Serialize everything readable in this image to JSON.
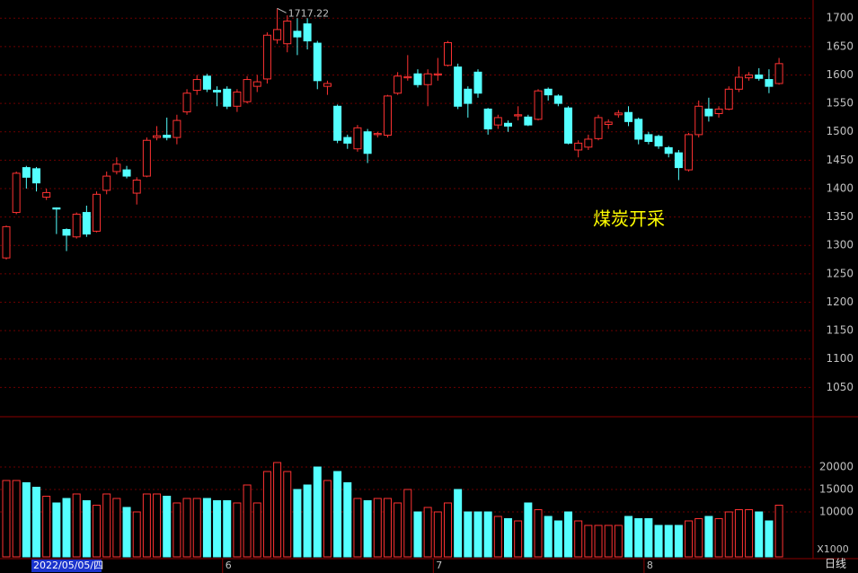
{
  "chart_data": {
    "type": "candlestick",
    "title": "煤炭开采",
    "period_label": "日线",
    "categories": [
      "2022/05/05/四",
      null,
      null,
      null,
      null,
      null,
      null,
      null,
      null,
      null,
      null,
      null,
      null,
      null,
      null,
      null,
      null,
      null,
      null,
      null,
      null,
      null,
      "6",
      null,
      null,
      null,
      null,
      null,
      null,
      null,
      null,
      null,
      null,
      null,
      null,
      null,
      null,
      null,
      null,
      null,
      null,
      null,
      null,
      "7",
      null,
      null,
      null,
      null,
      null,
      null,
      null,
      null,
      null,
      null,
      null,
      null,
      null,
      null,
      null,
      null,
      null,
      null,
      null,
      null,
      "8",
      null,
      null,
      null,
      null,
      null,
      null,
      null,
      null,
      null,
      null,
      null,
      null,
      null
    ],
    "open": [
      1278,
      1358,
      1437,
      1435,
      1385,
      1366,
      1328,
      1315,
      1358,
      1325,
      1397,
      1430,
      1433,
      1392,
      1422,
      1490,
      1494,
      1490,
      1535,
      1573,
      1598,
      1573,
      1575,
      1545,
      1553,
      1580,
      1593,
      1662,
      1655,
      1677,
      1690,
      1656,
      1580,
      1545,
      1490,
      1470,
      1500,
      1495,
      1494,
      1568,
      1595,
      1602,
      1583,
      1600,
      1617,
      1614,
      1575,
      1605,
      1540,
      1512,
      1515,
      1528,
      1526,
      1522,
      1575,
      1563,
      1542,
      1468,
      1473,
      1488,
      1513,
      1530,
      1534,
      1522,
      1495,
      1492,
      1472,
      1463,
      1433,
      1495,
      1540,
      1532,
      1540,
      1575,
      1595,
      1600,
      1592,
      1585
    ],
    "close": [
      1333,
      1427,
      1420,
      1410,
      1393,
      1364,
      1318,
      1355,
      1320,
      1390,
      1422,
      1443,
      1422,
      1415,
      1485,
      1493,
      1490,
      1520,
      1568,
      1592,
      1575,
      1570,
      1545,
      1570,
      1592,
      1588,
      1670,
      1680,
      1695,
      1667,
      1660,
      1590,
      1585,
      1485,
      1480,
      1507,
      1462,
      1497,
      1563,
      1598,
      1597,
      1583,
      1602,
      1602,
      1657,
      1545,
      1550,
      1568,
      1505,
      1525,
      1510,
      1530,
      1512,
      1572,
      1565,
      1550,
      1480,
      1480,
      1487,
      1525,
      1517,
      1533,
      1518,
      1487,
      1483,
      1475,
      1462,
      1437,
      1495,
      1545,
      1528,
      1540,
      1575,
      1596,
      1600,
      1594,
      1580,
      1620
    ],
    "high": [
      1335,
      1430,
      1440,
      1438,
      1400,
      1367,
      1330,
      1358,
      1370,
      1395,
      1430,
      1455,
      1440,
      1420,
      1490,
      1510,
      1525,
      1530,
      1575,
      1600,
      1602,
      1580,
      1580,
      1575,
      1598,
      1600,
      1675,
      1717.22,
      1705,
      1700,
      1700,
      1660,
      1590,
      1548,
      1495,
      1512,
      1505,
      1500,
      1565,
      1605,
      1635,
      1610,
      1610,
      1630,
      1660,
      1620,
      1580,
      1610,
      1542,
      1530,
      1520,
      1545,
      1530,
      1575,
      1578,
      1566,
      1545,
      1485,
      1495,
      1530,
      1522,
      1538,
      1545,
      1525,
      1500,
      1495,
      1475,
      1468,
      1498,
      1555,
      1560,
      1545,
      1580,
      1615,
      1605,
      1612,
      1610,
      1630
    ],
    "low": [
      1275,
      1355,
      1400,
      1395,
      1380,
      1320,
      1290,
      1312,
      1315,
      1323,
      1390,
      1425,
      1418,
      1372,
      1420,
      1485,
      1485,
      1478,
      1530,
      1565,
      1570,
      1545,
      1540,
      1535,
      1550,
      1570,
      1585,
      1655,
      1640,
      1635,
      1645,
      1575,
      1565,
      1480,
      1470,
      1465,
      1445,
      1490,
      1490,
      1565,
      1590,
      1578,
      1545,
      1590,
      1615,
      1540,
      1525,
      1560,
      1495,
      1505,
      1500,
      1520,
      1510,
      1520,
      1555,
      1545,
      1478,
      1455,
      1468,
      1485,
      1505,
      1525,
      1510,
      1478,
      1478,
      1470,
      1455,
      1415,
      1430,
      1490,
      1518,
      1525,
      1538,
      1570,
      1590,
      1590,
      1568,
      1583
    ],
    "peak_index": 27,
    "up_color": "#ff3232",
    "down_color": "#54ffff",
    "grid": true,
    "ylim": [
      1000,
      1732
    ],
    "yticks": [
      1050,
      1100,
      1150,
      1200,
      1250,
      1300,
      1350,
      1400,
      1450,
      1500,
      1550,
      1600,
      1650,
      1700
    ],
    "volume": {
      "unit_label": "X1000",
      "values": [
        17000,
        17000,
        16500,
        15500,
        13500,
        12000,
        13000,
        14000,
        12500,
        11500,
        14000,
        13000,
        11000,
        10000,
        14000,
        14000,
        13500,
        12000,
        13000,
        13000,
        13000,
        12500,
        12500,
        12000,
        16000,
        12000,
        19000,
        21000,
        19000,
        15000,
        16000,
        20000,
        17000,
        19000,
        16500,
        13000,
        12500,
        13000,
        13000,
        12000,
        15000,
        10000,
        11000,
        10000,
        12000,
        15000,
        10000,
        10000,
        10000,
        9000,
        8500,
        8000,
        12000,
        10500,
        9000,
        8000,
        10000,
        8000,
        7000,
        7000,
        7000,
        7000,
        9000,
        8500,
        8500,
        7000,
        7000,
        7000,
        8000,
        8500,
        9000,
        8500,
        10000,
        10500,
        10500,
        10000,
        8000,
        11500
      ],
      "ylim": [
        0,
        31000
      ],
      "yticks": [
        10000,
        15000,
        20000
      ]
    }
  }
}
